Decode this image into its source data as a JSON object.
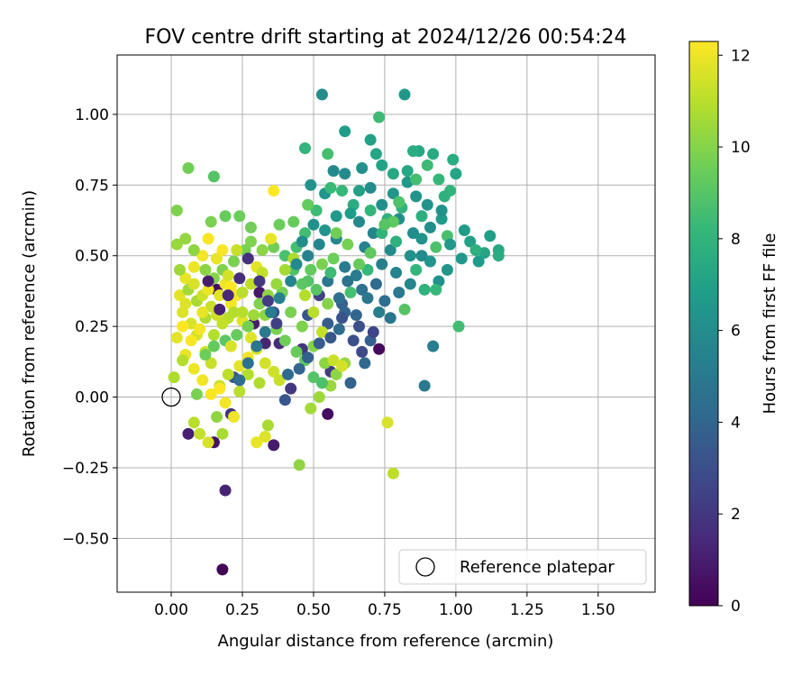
{
  "chart_data": {
    "type": "scatter",
    "title": "FOV centre drift starting at 2024/12/26 00:54:24",
    "xlabel": "Angular distance from reference (arcmin)",
    "ylabel": "Rotation from reference (arcmin)",
    "xlim": [
      -0.19,
      1.7
    ],
    "ylim": [
      -0.69,
      1.21
    ],
    "xticks": [
      0.0,
      0.25,
      0.5,
      0.75,
      1.0,
      1.25,
      1.5
    ],
    "xtick_labels": [
      "0.00",
      "0.25",
      "0.50",
      "0.75",
      "1.00",
      "1.25",
      "1.50"
    ],
    "yticks": [
      -0.5,
      -0.25,
      0.0,
      0.25,
      0.5,
      0.75,
      1.0
    ],
    "ytick_labels": [
      "−0.50",
      "−0.25",
      "0.00",
      "0.25",
      "0.50",
      "0.75",
      "1.00"
    ],
    "grid": true,
    "legend": {
      "placement": "lower-right",
      "entries": [
        "Reference platepar"
      ]
    },
    "reference_point": {
      "x": 0.0,
      "y": 0.0,
      "label": "Reference platepar"
    },
    "colorbar": {
      "label": "Hours from first FF file",
      "colormap": "viridis",
      "range": [
        0,
        12.3
      ],
      "ticks": [
        0,
        2,
        4,
        6,
        8,
        10,
        12
      ],
      "tick_labels": [
        "0",
        "2",
        "4",
        "6",
        "8",
        "10",
        "12"
      ],
      "stops": [
        "#440154",
        "#482878",
        "#3e4989",
        "#31688e",
        "#26828e",
        "#1f9e89",
        "#35b779",
        "#6ece58",
        "#b5de2b",
        "#fde725"
      ]
    },
    "points": [
      [
        0.18,
        -0.61,
        0.1
      ],
      [
        0.19,
        -0.33,
        1.2
      ],
      [
        0.36,
        -0.17,
        0.9
      ],
      [
        0.15,
        -0.16,
        0.6
      ],
      [
        0.06,
        -0.13,
        1.1
      ],
      [
        0.16,
        0.38,
        0.5
      ],
      [
        0.31,
        0.37,
        0.8
      ],
      [
        0.29,
        0.26,
        1.0
      ],
      [
        0.33,
        0.19,
        1.3
      ],
      [
        0.38,
        0.19,
        1.5
      ],
      [
        0.21,
        -0.06,
        1.8
      ],
      [
        0.42,
        0.03,
        2.0
      ],
      [
        0.46,
        0.17,
        1.9
      ],
      [
        0.52,
        0.36,
        2.4
      ],
      [
        0.55,
        -0.06,
        0.4
      ],
      [
        0.73,
        0.17,
        0.3
      ],
      [
        0.56,
        0.09,
        2.2
      ],
      [
        0.66,
        0.25,
        3.0
      ],
      [
        0.22,
        0.07,
        3.2
      ],
      [
        0.4,
        -0.01,
        3.3
      ],
      [
        0.36,
        0.3,
        3.1
      ],
      [
        0.48,
        0.29,
        3.4
      ],
      [
        0.55,
        0.26,
        3.6
      ],
      [
        0.6,
        0.33,
        3.8
      ],
      [
        0.65,
        0.29,
        4.0
      ],
      [
        0.7,
        0.2,
        3.7
      ],
      [
        0.72,
        0.4,
        4.2
      ],
      [
        0.75,
        0.34,
        4.4
      ],
      [
        0.68,
        0.12,
        4.1
      ],
      [
        0.63,
        0.05,
        3.9
      ],
      [
        0.59,
        0.24,
        4.3
      ],
      [
        0.61,
        0.3,
        4.0
      ],
      [
        0.67,
        0.38,
        4.6
      ],
      [
        0.77,
        0.28,
        4.8
      ],
      [
        0.8,
        0.37,
        5.0
      ],
      [
        0.89,
        0.04,
        5.0
      ],
      [
        0.92,
        0.18,
        5.2
      ],
      [
        0.74,
        0.47,
        5.3
      ],
      [
        0.68,
        0.53,
        5.4
      ],
      [
        0.61,
        0.46,
        5.1
      ],
      [
        0.55,
        0.41,
        4.9
      ],
      [
        0.48,
        0.5,
        5.5
      ],
      [
        0.52,
        0.54,
        5.6
      ],
      [
        0.58,
        0.56,
        5.7
      ],
      [
        0.66,
        0.62,
        5.8
      ],
      [
        0.71,
        0.58,
        5.6
      ],
      [
        0.77,
        0.52,
        5.9
      ],
      [
        0.8,
        0.63,
        6.1
      ],
      [
        0.85,
        0.58,
        6.0
      ],
      [
        0.84,
        0.5,
        6.2
      ],
      [
        0.88,
        0.56,
        6.3
      ],
      [
        0.91,
        0.48,
        6.4
      ],
      [
        0.94,
        0.41,
        6.2
      ],
      [
        0.97,
        0.45,
        6.5
      ],
      [
        1.02,
        0.49,
        6.6
      ],
      [
        1.08,
        0.48,
        6.7
      ],
      [
        1.12,
        0.57,
        6.9
      ],
      [
        1.03,
        0.59,
        6.8
      ],
      [
        0.95,
        0.63,
        6.7
      ],
      [
        0.9,
        0.68,
        6.4
      ],
      [
        0.86,
        0.71,
        6.3
      ],
      [
        0.83,
        0.76,
        6.6
      ],
      [
        0.78,
        0.72,
        6.5
      ],
      [
        0.74,
        0.68,
        6.1
      ],
      [
        0.7,
        0.74,
        6.0
      ],
      [
        0.67,
        0.81,
        6.2
      ],
      [
        0.61,
        0.79,
        5.9
      ],
      [
        0.57,
        0.8,
        5.8
      ],
      [
        0.54,
        0.72,
        6.4
      ],
      [
        0.49,
        0.75,
        6.3
      ],
      [
        0.61,
        0.94,
        6.8
      ],
      [
        0.7,
        0.91,
        7.0
      ],
      [
        0.74,
        0.82,
        7.1
      ],
      [
        0.83,
        0.8,
        7.3
      ],
      [
        0.87,
        0.87,
        7.4
      ],
      [
        0.92,
        0.86,
        7.5
      ],
      [
        0.99,
        0.84,
        7.6
      ],
      [
        1.0,
        0.79,
        7.2
      ],
      [
        0.96,
        0.71,
        7.8
      ],
      [
        0.88,
        0.64,
        7.7
      ],
      [
        0.81,
        0.67,
        8.0
      ],
      [
        0.76,
        0.63,
        7.9
      ],
      [
        0.7,
        0.66,
        8.1
      ],
      [
        0.64,
        0.68,
        7.6
      ],
      [
        0.6,
        0.73,
        8.2
      ],
      [
        0.56,
        0.74,
        8.3
      ],
      [
        0.51,
        0.66,
        8.4
      ],
      [
        0.47,
        0.58,
        8.5
      ],
      [
        0.44,
        0.53,
        8.6
      ],
      [
        0.4,
        0.5,
        8.7
      ],
      [
        0.43,
        0.45,
        8.8
      ],
      [
        0.48,
        0.41,
        8.9
      ],
      [
        0.51,
        0.38,
        9.0
      ],
      [
        0.56,
        0.44,
        8.4
      ],
      [
        0.63,
        0.37,
        8.6
      ],
      [
        0.69,
        0.45,
        8.2
      ],
      [
        0.74,
        0.58,
        8.0
      ],
      [
        0.79,
        0.55,
        7.8
      ],
      [
        0.86,
        0.45,
        8.1
      ],
      [
        0.89,
        0.38,
        7.9
      ],
      [
        0.93,
        0.38,
        8.2
      ],
      [
        1.01,
        0.25,
        8.5
      ],
      [
        0.93,
        0.53,
        8.8
      ],
      [
        0.97,
        0.57,
        8.7
      ],
      [
        0.82,
        0.31,
        9.0
      ],
      [
        0.78,
        0.62,
        9.2
      ],
      [
        0.73,
        0.99,
        8.4
      ],
      [
        0.82,
        1.07,
        6.5
      ],
      [
        0.53,
        1.07,
        6.0
      ],
      [
        0.47,
        0.88,
        8.0
      ],
      [
        0.55,
        0.86,
        8.6
      ],
      [
        0.48,
        0.68,
        9.3
      ],
      [
        0.43,
        0.62,
        9.4
      ],
      [
        0.38,
        0.61,
        9.5
      ],
      [
        0.36,
        0.53,
        9.6
      ],
      [
        0.39,
        0.37,
        9.7
      ],
      [
        0.42,
        0.3,
        9.8
      ],
      [
        0.46,
        0.25,
        9.9
      ],
      [
        0.5,
        0.18,
        10.0
      ],
      [
        0.54,
        0.12,
        10.1
      ],
      [
        0.58,
        0.08,
        10.2
      ],
      [
        0.61,
        0.12,
        10.3
      ],
      [
        0.56,
        0.04,
        10.4
      ],
      [
        0.52,
        0.0,
        10.5
      ],
      [
        0.49,
        -0.04,
        10.6
      ],
      [
        0.45,
        -0.24,
        10.2
      ],
      [
        0.34,
        -0.1,
        10.7
      ],
      [
        0.31,
        0.05,
        10.8
      ],
      [
        0.27,
        0.08,
        10.9
      ],
      [
        0.24,
        0.02,
        11.0
      ],
      [
        0.2,
        0.08,
        11.1
      ],
      [
        0.17,
        0.04,
        11.2
      ],
      [
        0.14,
        0.12,
        11.3
      ],
      [
        0.12,
        0.16,
        11.4
      ],
      [
        0.09,
        0.22,
        11.5
      ],
      [
        0.07,
        0.26,
        11.6
      ],
      [
        0.04,
        0.3,
        11.7
      ],
      [
        0.03,
        0.36,
        11.8
      ],
      [
        0.05,
        0.42,
        11.9
      ],
      [
        0.08,
        0.46,
        12.0
      ],
      [
        0.11,
        0.5,
        12.1
      ],
      [
        0.13,
        0.56,
        12.2
      ],
      [
        0.16,
        0.49,
        11.9
      ],
      [
        0.19,
        0.4,
        12.0
      ],
      [
        0.21,
        0.33,
        12.1
      ],
      [
        0.25,
        0.27,
        11.8
      ],
      [
        0.28,
        0.21,
        11.7
      ],
      [
        0.3,
        0.17,
        11.6
      ],
      [
        0.33,
        0.12,
        11.5
      ],
      [
        0.36,
        0.09,
        11.4
      ],
      [
        0.38,
        0.06,
        11.3
      ],
      [
        0.23,
        0.36,
        12.2
      ],
      [
        0.2,
        0.28,
        11.0
      ],
      [
        0.15,
        0.22,
        10.9
      ],
      [
        0.12,
        0.28,
        10.8
      ],
      [
        0.09,
        0.34,
        10.7
      ],
      [
        0.06,
        0.38,
        10.6
      ],
      [
        0.03,
        0.45,
        10.5
      ],
      [
        0.02,
        0.54,
        10.4
      ],
      [
        0.05,
        0.56,
        10.3
      ],
      [
        0.08,
        0.52,
        10.2
      ],
      [
        0.12,
        0.45,
        10.1
      ],
      [
        0.15,
        0.42,
        10.0
      ],
      [
        0.18,
        0.45,
        9.9
      ],
      [
        0.22,
        0.48,
        9.8
      ],
      [
        0.26,
        0.52,
        9.7
      ],
      [
        0.28,
        0.6,
        9.6
      ],
      [
        0.24,
        0.64,
        9.5
      ],
      [
        0.19,
        0.64,
        9.4
      ],
      [
        0.14,
        0.62,
        9.8
      ],
      [
        0.02,
        0.66,
        9.9
      ],
      [
        0.06,
        0.81,
        9.6
      ],
      [
        0.15,
        0.78,
        9.0
      ],
      [
        0.36,
        0.73,
        12.3
      ],
      [
        0.35,
        0.56,
        11.9
      ],
      [
        0.3,
        0.46,
        11.8
      ],
      [
        0.32,
        0.44,
        11.2
      ],
      [
        0.28,
        0.4,
        11.1
      ],
      [
        0.25,
        0.37,
        11.0
      ],
      [
        0.22,
        0.3,
        10.9
      ],
      [
        0.18,
        0.26,
        11.2
      ],
      [
        0.14,
        0.32,
        11.3
      ],
      [
        0.11,
        0.36,
        11.4
      ],
      [
        0.08,
        0.4,
        11.6
      ],
      [
        0.05,
        0.33,
        11.7
      ],
      [
        0.02,
        0.21,
        11.8
      ],
      [
        0.05,
        0.15,
        11.9
      ],
      [
        0.08,
        0.1,
        12.0
      ],
      [
        0.11,
        0.06,
        12.1
      ],
      [
        0.14,
        0.01,
        12.2
      ],
      [
        0.17,
        0.03,
        12.3
      ],
      [
        0.19,
        -0.02,
        12.1
      ],
      [
        0.22,
        -0.07,
        12.0
      ],
      [
        0.3,
        -0.16,
        11.9
      ],
      [
        0.33,
        -0.14,
        11.7
      ],
      [
        0.13,
        -0.16,
        11.6
      ],
      [
        0.1,
        -0.13,
        11.2
      ],
      [
        0.08,
        -0.09,
        11.0
      ],
      [
        0.04,
        0.13,
        10.9
      ],
      [
        0.01,
        0.07,
        10.8
      ],
      [
        0.18,
        -0.13,
        10.7
      ],
      [
        0.16,
        -0.07,
        10.2
      ],
      [
        0.09,
        0.01,
        9.8
      ],
      [
        0.12,
        0.15,
        9.5
      ],
      [
        0.15,
        0.18,
        9.3
      ],
      [
        0.19,
        0.2,
        9.1
      ],
      [
        0.23,
        0.22,
        9.4
      ],
      [
        0.27,
        0.25,
        9.7
      ],
      [
        0.31,
        0.33,
        9.9
      ],
      [
        0.34,
        0.36,
        10.2
      ],
      [
        0.37,
        0.4,
        10.4
      ],
      [
        0.4,
        0.45,
        10.6
      ],
      [
        0.43,
        0.49,
        10.8
      ],
      [
        0.47,
        0.36,
        10.9
      ],
      [
        0.5,
        0.3,
        11.0
      ],
      [
        0.53,
        0.23,
        11.2
      ],
      [
        0.57,
        0.13,
        11.3
      ],
      [
        0.6,
        0.11,
        11.5
      ],
      [
        0.76,
        -0.09,
        11.6
      ],
      [
        0.78,
        -0.27,
        11.1
      ],
      [
        0.16,
        0.29,
        11.4
      ],
      [
        0.21,
        0.18,
        11.6
      ],
      [
        0.24,
        0.11,
        11.8
      ],
      [
        0.27,
        0.14,
        12.0
      ],
      [
        0.1,
        0.24,
        12.1
      ],
      [
        0.07,
        0.2,
        12.2
      ],
      [
        0.04,
        0.25,
        12.3
      ],
      [
        0.11,
        0.3,
        11.9
      ],
      [
        0.13,
        0.38,
        12.0
      ],
      [
        0.17,
        0.36,
        11.8
      ],
      [
        0.2,
        0.43,
        11.5
      ],
      [
        0.23,
        0.52,
        11.3
      ],
      [
        0.18,
        0.52,
        12.2
      ],
      [
        0.21,
        0.39,
        12.3
      ],
      [
        0.25,
        0.3,
        11.0
      ],
      [
        0.29,
        0.29,
        10.5
      ],
      [
        0.33,
        0.29,
        10.2
      ],
      [
        0.37,
        0.24,
        9.8
      ],
      [
        0.4,
        0.2,
        9.6
      ],
      [
        0.44,
        0.16,
        9.4
      ],
      [
        0.47,
        0.13,
        9.2
      ],
      [
        0.5,
        0.07,
        9.0
      ],
      [
        0.53,
        0.05,
        8.8
      ],
      [
        0.32,
        0.52,
        10.1
      ],
      [
        0.28,
        0.55,
        9.9
      ],
      [
        0.59,
        0.35,
        4.5
      ],
      [
        0.62,
        0.41,
        4.7
      ],
      [
        0.65,
        0.43,
        5.1
      ],
      [
        0.69,
        0.35,
        4.9
      ],
      [
        0.73,
        0.3,
        5.3
      ],
      [
        0.79,
        0.44,
        5.5
      ],
      [
        0.84,
        0.4,
        5.7
      ],
      [
        0.88,
        0.5,
        5.9
      ],
      [
        0.91,
        0.6,
        6.1
      ],
      [
        0.95,
        0.66,
        6.3
      ],
      [
        0.98,
        0.54,
        6.6
      ],
      [
        1.05,
        0.55,
        7.0
      ],
      [
        1.1,
        0.51,
        7.2
      ],
      [
        1.15,
        0.52,
        7.4
      ],
      [
        1.15,
        0.5,
        7.6
      ],
      [
        1.07,
        0.52,
        7.8
      ],
      [
        0.85,
        0.87,
        7.6
      ],
      [
        0.78,
        0.79,
        7.4
      ],
      [
        0.72,
        0.86,
        7.2
      ],
      [
        0.66,
        0.73,
        7.0
      ],
      [
        0.63,
        0.65,
        6.8
      ],
      [
        0.58,
        0.64,
        6.6
      ],
      [
        0.54,
        0.59,
        6.4
      ],
      [
        0.5,
        0.61,
        6.2
      ],
      [
        0.46,
        0.55,
        6.0
      ],
      [
        0.44,
        0.47,
        5.8
      ],
      [
        0.42,
        0.41,
        5.6
      ],
      [
        0.38,
        0.35,
        5.4
      ],
      [
        0.35,
        0.3,
        5.2
      ],
      [
        0.33,
        0.23,
        5.0
      ],
      [
        0.3,
        0.18,
        4.8
      ],
      [
        0.27,
        0.12,
        4.6
      ],
      [
        0.24,
        0.06,
        4.4
      ],
      [
        0.41,
        0.08,
        4.2
      ],
      [
        0.45,
        0.1,
        4.0
      ],
      [
        0.48,
        0.14,
        3.8
      ],
      [
        0.52,
        0.19,
        3.6
      ],
      [
        0.56,
        0.21,
        3.4
      ],
      [
        0.6,
        0.28,
        3.2
      ],
      [
        0.64,
        0.2,
        3.0
      ],
      [
        0.67,
        0.16,
        2.8
      ],
      [
        0.71,
        0.23,
        2.6
      ],
      [
        0.37,
        0.26,
        2.4
      ],
      [
        0.34,
        0.34,
        2.2
      ],
      [
        0.31,
        0.41,
        2.0
      ],
      [
        0.27,
        0.49,
        1.8
      ],
      [
        0.24,
        0.42,
        1.6
      ],
      [
        0.2,
        0.36,
        1.4
      ],
      [
        0.17,
        0.31,
        1.2
      ],
      [
        0.13,
        0.41,
        1.0
      ],
      [
        0.46,
        0.4,
        9.1
      ],
      [
        0.49,
        0.45,
        9.3
      ],
      [
        0.57,
        0.49,
        9.5
      ],
      [
        0.62,
        0.54,
        9.7
      ],
      [
        0.66,
        0.47,
        9.4
      ],
      [
        0.7,
        0.51,
        9.2
      ],
      [
        0.75,
        0.61,
        9.0
      ],
      [
        0.8,
        0.69,
        8.8
      ],
      [
        0.86,
        0.77,
        8.6
      ],
      [
        0.9,
        0.82,
        8.4
      ],
      [
        0.94,
        0.77,
        8.2
      ],
      [
        0.98,
        0.73,
        8.0
      ],
      [
        0.58,
        0.58,
        9.6
      ],
      [
        0.53,
        0.47,
        9.8
      ],
      [
        0.55,
        0.33,
        10.0
      ]
    ]
  }
}
